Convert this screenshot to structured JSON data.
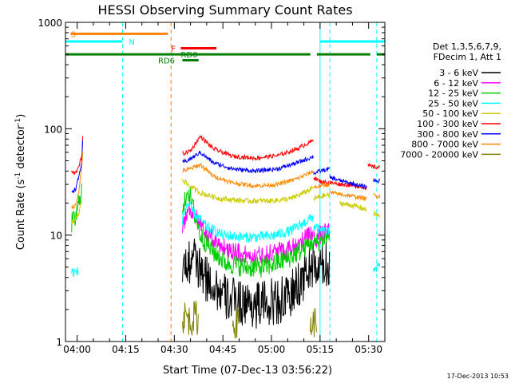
{
  "chart_data": {
    "type": "line",
    "title": "HESSI Observing Summary Count Rates",
    "xlabel": "Start Time (07-Dec-13 03:56:22)",
    "ylabel_main": "Count Rate (s",
    "ylabel_sup1": "-1",
    "ylabel_mid": " detector",
    "ylabel_sup2": "-1",
    "ylabel_end": ")",
    "timestamp": "17-Dec-2013 10:53",
    "x_range_min": [
      236.4,
      335
    ],
    "y_range": [
      1,
      1000
    ],
    "y_scale": "log",
    "x_ticks": [
      {
        "min": 240,
        "label": "04:00"
      },
      {
        "min": 255,
        "label": "04:15"
      },
      {
        "min": 270,
        "label": "04:30"
      },
      {
        "min": 285,
        "label": "04:45"
      },
      {
        "min": 300,
        "label": "05:00"
      },
      {
        "min": 315,
        "label": "05:15"
      },
      {
        "min": 330,
        "label": "05:30"
      }
    ],
    "y_ticks": [
      {
        "value": 1,
        "label": "1"
      },
      {
        "value": 10,
        "label": "10"
      },
      {
        "value": 100,
        "label": "100"
      },
      {
        "value": 1000,
        "label": "1000"
      }
    ],
    "legend": {
      "placement": "right",
      "header1": "Det 1,3,5,6,7,9,",
      "header2": "FDecim 1, Att 1",
      "entries": [
        {
          "label": "3 - 6 keV",
          "color": "#000000"
        },
        {
          "label": "6 - 12 keV",
          "color": "#ff00ff"
        },
        {
          "label": "12 - 25 keV",
          "color": "#00cc00"
        },
        {
          "label": "25 - 50 keV",
          "color": "#00ffff"
        },
        {
          "label": "50 - 100 keV",
          "color": "#cccc00"
        },
        {
          "label": "100 - 300 keV",
          "color": "#ff0000"
        },
        {
          "label": "300 - 800 keV",
          "color": "#0000ff"
        },
        {
          "label": "800 - 7000 keV",
          "color": "#ff8800"
        },
        {
          "label": "7000 - 20000 keV",
          "color": "#808000"
        }
      ]
    },
    "flag_bars": [
      {
        "label": "S",
        "color": "#ff8000",
        "y_value": 780,
        "segments": [
          [
            238,
            268
          ]
        ],
        "label_x_min": 238
      },
      {
        "label": "N",
        "color": "#00ffff",
        "y_value": 660,
        "segments": [
          [
            236.4,
            254
          ],
          [
            315,
            335
          ]
        ],
        "label_x_min": 256
      },
      {
        "label": "F",
        "color": "#ff0000",
        "y_value": 570,
        "segments": [
          [
            272,
            283
          ]
        ],
        "label_x_min": 269
      },
      {
        "label": "RD0",
        "color": "#008000",
        "y_value": 500,
        "segments": [
          [
            236.4,
            312
          ],
          [
            314,
            330.5
          ],
          [
            332.5,
            335
          ]
        ],
        "label_x_min": 272
      },
      {
        "label": "RD6",
        "color": "#008000",
        "y_value": 440,
        "segments": [
          [
            272.5,
            277.5
          ]
        ],
        "label_x_min": 265
      }
    ],
    "vertical_lines": [
      {
        "x_min": 254,
        "color": "#00ffff",
        "style": "dashed"
      },
      {
        "x_min": 269,
        "color": "#ff8000",
        "style": "dashed"
      },
      {
        "x_min": 315,
        "color": "#00ffff",
        "style": "solid"
      },
      {
        "x_min": 318,
        "color": "#00ffff",
        "style": "dashed"
      },
      {
        "x_min": 332.5,
        "color": "#00ffff",
        "style": "dashed"
      }
    ],
    "series": [
      {
        "name": "3 - 6 keV",
        "color": "#000000",
        "noise": 0.45,
        "segments": [
          {
            "points": [
              [
                272.5,
                5
              ],
              [
                276,
                6
              ],
              [
                279,
                4
              ],
              [
                282,
                3.5
              ],
              [
                286,
                2.5
              ],
              [
                295,
                2.2
              ],
              [
                305,
                2.5
              ],
              [
                310,
                4
              ],
              [
                313,
                5.5
              ]
            ]
          },
          {
            "points": [
              [
                313,
                4.5
              ],
              [
                315,
                5
              ],
              [
                318,
                5.5
              ]
            ]
          }
        ]
      },
      {
        "name": "6 - 12 keV",
        "color": "#ff00ff",
        "noise": 0.18,
        "segments": [
          {
            "points": [
              [
                272.5,
                12
              ],
              [
                274.5,
                18
              ],
              [
                276,
                16
              ],
              [
                278,
                12
              ],
              [
                282,
                9
              ],
              [
                286,
                7.5
              ],
              [
                292,
                6.5
              ],
              [
                298,
                6.5
              ],
              [
                305,
                7.5
              ],
              [
                310,
                9
              ],
              [
                313,
                11
              ]
            ]
          },
          {
            "points": [
              [
                313,
                9
              ],
              [
                315,
                10
              ],
              [
                318,
                11
              ]
            ]
          }
        ]
      },
      {
        "name": "12 - 25 keV",
        "color": "#00cc00",
        "noise": 0.2,
        "segments": [
          {
            "points": [
              [
                238.3,
                13
              ],
              [
                239.5,
                14
              ],
              [
                240.5,
                20
              ],
              [
                241.5,
                30
              ]
            ]
          },
          {
            "points": [
              [
                272.5,
                15
              ],
              [
                274,
                28
              ],
              [
                275,
                22
              ],
              [
                278,
                10
              ],
              [
                282,
                7
              ],
              [
                286,
                5.5
              ],
              [
                292,
                5
              ],
              [
                298,
                5
              ],
              [
                305,
                6
              ],
              [
                310,
                7.5
              ],
              [
                313,
                9
              ]
            ]
          },
          {
            "points": [
              [
                313,
                8
              ],
              [
                315,
                9
              ],
              [
                318,
                10
              ]
            ]
          }
        ]
      },
      {
        "name": "25 - 50 keV",
        "color": "#00ffff",
        "noise": 0.1,
        "segments": [
          {
            "points": [
              [
                238.3,
                4.5
              ],
              [
                240.5,
                4.5
              ]
            ]
          },
          {
            "points": [
              [
                272.5,
                14
              ],
              [
                274,
                20
              ],
              [
                276,
                16
              ],
              [
                280,
                12
              ],
              [
                285,
                10
              ],
              [
                292,
                9.5
              ],
              [
                300,
                9.8
              ],
              [
                306,
                11
              ],
              [
                310,
                13
              ],
              [
                313,
                15
              ]
            ]
          },
          {
            "points": [
              [
                313,
                12
              ],
              [
                315,
                11
              ],
              [
                318,
                10.5
              ]
            ]
          },
          {
            "points": [
              [
                331.5,
                5
              ],
              [
                333.5,
                5
              ]
            ]
          }
        ]
      },
      {
        "name": "50 - 100 keV",
        "color": "#cccc00",
        "noise": 0.05,
        "segments": [
          {
            "points": [
              [
                238.3,
                13
              ],
              [
                239.5,
                14
              ],
              [
                240.5,
                16
              ],
              [
                241.5,
                22
              ]
            ]
          },
          {
            "points": [
              [
                272.5,
                34
              ],
              [
                274,
                30
              ],
              [
                278,
                25
              ],
              [
                284,
                22
              ],
              [
                292,
                21
              ],
              [
                300,
                21
              ],
              [
                306,
                22
              ],
              [
                310,
                25
              ],
              [
                313,
                28
              ]
            ]
          },
          {
            "points": [
              [
                313,
                22
              ],
              [
                315,
                23
              ],
              [
                318,
                24
              ]
            ]
          },
          {
            "points": [
              [
                321,
                20
              ],
              [
                325,
                19
              ],
              [
                328,
                18
              ],
              [
                329.5,
                17
              ]
            ]
          },
          {
            "points": [
              [
                331.5,
                16
              ],
              [
                333.5,
                15
              ]
            ]
          }
        ]
      },
      {
        "name": "100 - 300 keV",
        "color": "#ff0000",
        "noise": 0.04,
        "segments": [
          {
            "points": [
              [
                238.3,
                39
              ],
              [
                239.5,
                38
              ],
              [
                240.5,
                45
              ],
              [
                241.5,
                55
              ],
              [
                241.8,
                100
              ]
            ]
          },
          {
            "points": [
              [
                272.5,
                58
              ],
              [
                275,
                62
              ],
              [
                278,
                85
              ],
              [
                282,
                65
              ],
              [
                288,
                55
              ],
              [
                295,
                53
              ],
              [
                302,
                56
              ],
              [
                308,
                65
              ],
              [
                313,
                78
              ]
            ]
          },
          {
            "points": [
              [
                313,
                35
              ],
              [
                315,
                32
              ],
              [
                318,
                31
              ],
              [
                322,
                30
              ],
              [
                326,
                29
              ],
              [
                329.5,
                28
              ]
            ]
          },
          {
            "points": [
              [
                329.8,
                45
              ],
              [
                331,
                44
              ],
              [
                333.5,
                43
              ]
            ]
          }
        ]
      },
      {
        "name": "300 - 800 keV",
        "color": "#0000ff",
        "noise": 0.04,
        "segments": [
          {
            "points": [
              [
                238.3,
                26
              ],
              [
                239.5,
                27
              ],
              [
                240.5,
                35
              ],
              [
                241.5,
                50
              ],
              [
                241.8,
                95
              ]
            ]
          },
          {
            "points": [
              [
                272.5,
                48
              ],
              [
                275,
                52
              ],
              [
                278,
                60
              ],
              [
                282,
                48
              ],
              [
                288,
                42
              ],
              [
                295,
                40
              ],
              [
                302,
                42
              ],
              [
                308,
                48
              ],
              [
                313,
                55
              ]
            ]
          },
          {
            "points": [
              [
                313,
                38
              ],
              [
                315,
                40
              ],
              [
                318,
                42
              ]
            ]
          },
          {
            "points": [
              [
                318,
                35
              ],
              [
                322,
                32
              ],
              [
                326,
                30
              ],
              [
                329.5,
                28
              ]
            ]
          },
          {
            "points": [
              [
                331.5,
                33
              ],
              [
                333.5,
                32
              ]
            ]
          }
        ]
      },
      {
        "name": "800 - 7000 keV",
        "color": "#ff8800",
        "noise": 0.04,
        "segments": [
          {
            "points": [
              [
                238.3,
                18
              ],
              [
                239.5,
                19
              ],
              [
                240.5,
                26
              ],
              [
                241.5,
                45
              ],
              [
                241.8,
                70
              ]
            ]
          },
          {
            "points": [
              [
                272.5,
                40
              ],
              [
                275,
                42
              ],
              [
                278,
                46
              ],
              [
                282,
                36
              ],
              [
                288,
                31
              ],
              [
                295,
                29
              ],
              [
                302,
                30
              ],
              [
                308,
                34
              ],
              [
                313,
                40
              ]
            ]
          },
          {
            "points": [
              [
                313,
                28
              ],
              [
                315,
                29
              ],
              [
                318,
                30
              ]
            ]
          },
          {
            "points": [
              [
                318,
                25
              ],
              [
                322,
                24
              ],
              [
                326,
                23
              ],
              [
                329.5,
                22
              ]
            ]
          },
          {
            "points": [
              [
                331.5,
                24
              ],
              [
                333.5,
                23
              ]
            ]
          }
        ]
      },
      {
        "name": "7000 - 20000 keV",
        "color": "#808000",
        "noise": 0.3,
        "segments": [
          {
            "points": [
              [
                272.5,
                1.6
              ],
              [
                273.5,
                1.8
              ],
              [
                275,
                1.5
              ],
              [
                276.5,
                1.8
              ],
              [
                277.5,
                1.5
              ]
            ]
          },
          {
            "points": [
              [
                288,
                1.4
              ],
              [
                290,
                1.6
              ]
            ]
          },
          {
            "points": [
              [
                312,
                1.4
              ],
              [
                314,
                1.6
              ]
            ]
          }
        ]
      }
    ]
  }
}
